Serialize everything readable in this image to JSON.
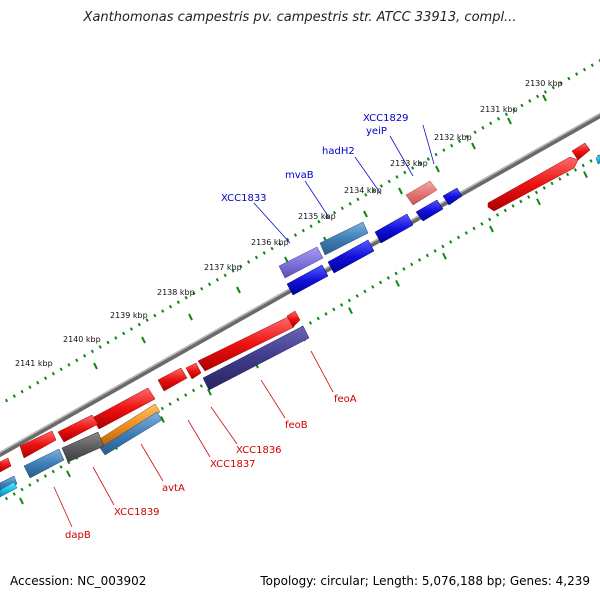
{
  "header": {
    "title": "Xanthomonas campestris pv. campestris str. ATCC 33913, compl..."
  },
  "footer": {
    "accession": "Accession: NC_003902",
    "summary": "Topology: circular; Length: 5,076,188 bp; Genes: 4,239"
  },
  "ruler": {
    "labels": [
      "2130 kbp",
      "2131 kbp",
      "2132 kbp",
      "2133 kbp",
      "2134 kbp",
      "2135 kbp",
      "2136 kbp",
      "2137 kbp",
      "2138 kbp",
      "2139 kbp",
      "2140 kbp",
      "2141 kbp"
    ]
  },
  "colors": {
    "forward": "#ee1111",
    "reverse": "#1111dd",
    "backbone": "#888888",
    "tick": "#118811",
    "label_forward": "#cc0000",
    "label_reverse": "#0000cc"
  },
  "genes_top": [
    "XCC1829",
    "yeiP",
    "hadH2",
    "mvaB",
    "XCC1833"
  ],
  "genes_bottom": [
    "feoA",
    "feoB",
    "XCC1836",
    "XCC1837",
    "avtA",
    "XCC1839",
    "dapB"
  ]
}
